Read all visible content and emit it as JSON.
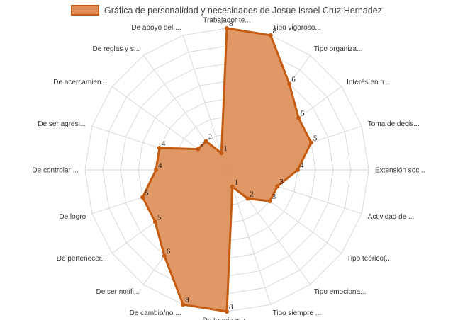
{
  "chart_data": {
    "type": "radar",
    "title": "",
    "legend": {
      "placement": "top-center",
      "label": "Gráfica de personalidad y necesidades de Josue Israel Cruz Hernadez"
    },
    "axes": [
      "Trabajador te...",
      "Tipo vigoroso...",
      "Tipo organiza...",
      "Interés en tr...",
      "Toma de decis...",
      "Extensión soc...",
      "Actividad de ...",
      "Tipo teórico(...",
      "Tipo emociona...",
      "Tipo siempre ...",
      "De terminar u...",
      "De cambio/no ...",
      "De ser notifi...",
      "De pertenecer...",
      "De logro",
      "De controlar ...",
      "De ser agresi...",
      "De acercamien...",
      "De reglas y s...",
      "De apoyo del ..."
    ],
    "series": [
      {
        "name": "Gráfica de personalidad y necesidades de Josue Israel Cruz Hernadez",
        "values": [
          8,
          8,
          6,
          5,
          5,
          4,
          3,
          3,
          2,
          1,
          8,
          8,
          6,
          5,
          5,
          4,
          4,
          2,
          2,
          1
        ],
        "labels": [
          "8",
          "8",
          "6",
          "5",
          "5",
          "4",
          "3",
          "3",
          "2",
          "1",
          "8",
          "8",
          "6",
          "5",
          "5",
          "4",
          "4",
          "2",
          "2",
          "1"
        ],
        "color": "#c55a11",
        "fill": "#dd8d55"
      }
    ],
    "rmax": 8,
    "grid": true,
    "grid_steps": 8
  }
}
